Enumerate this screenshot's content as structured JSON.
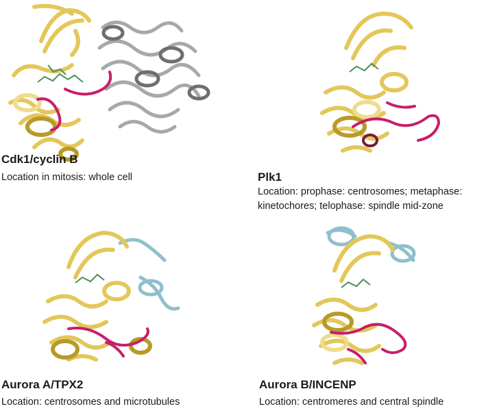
{
  "colors": {
    "kinase": "#e3c75a",
    "kinase_light": "#efdc8e",
    "kinase_dark": "#b89a2a",
    "cyclin": "#a8a8a8",
    "cyclin_dark": "#6e6e6e",
    "activation_loop": "#c81e6a",
    "partner_blue": "#8fbfcc",
    "ligand_green": "#4d8c5a"
  },
  "panels": [
    {
      "id": "cdk1",
      "title": "Cdk1/cyclin B",
      "lines": [
        "Location in mitosis: whole cell"
      ],
      "partner": "cyclin"
    },
    {
      "id": "plk1",
      "title": "Plk1",
      "lines": [
        "Location: prophase: centrosomes; metaphase:",
        "kinetochores; telophase: spindle mid-zone"
      ],
      "partner": "none"
    },
    {
      "id": "aurora-a",
      "title": "Aurora A/TPX2",
      "lines": [
        "Location: centrosomes and microtubules"
      ],
      "partner": "blue"
    },
    {
      "id": "aurora-b",
      "title": "Aurora B/INCENP",
      "lines": [
        "Location: centromeres and central spindle"
      ],
      "partner": "blue"
    }
  ]
}
